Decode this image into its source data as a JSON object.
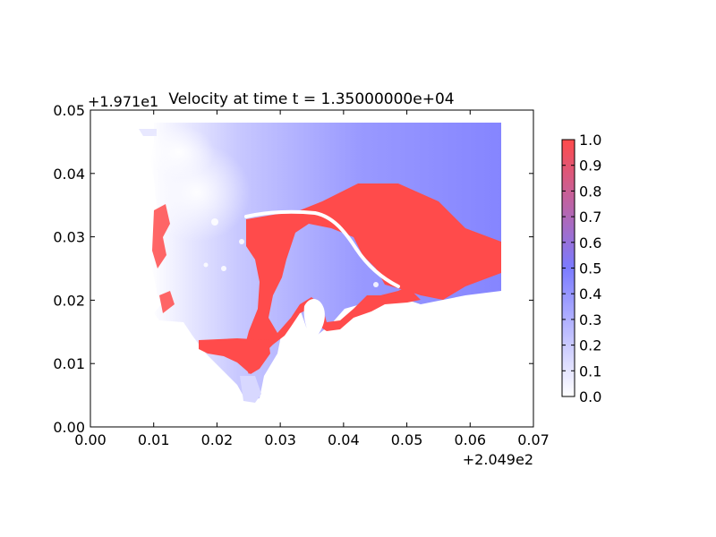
{
  "chart_data": {
    "type": "heatmap",
    "title": "Velocity at time t = 1.35000000e+04",
    "x_offset_label": "+2.049e2",
    "y_offset_label": "+1.971e1",
    "xlim": [
      0.0,
      0.07
    ],
    "ylim": [
      0.0,
      0.05
    ],
    "x_ticks": [
      "0.00",
      "0.01",
      "0.02",
      "0.03",
      "0.04",
      "0.05",
      "0.06",
      "0.07"
    ],
    "y_ticks": [
      "0.00",
      "0.01",
      "0.02",
      "0.03",
      "0.04",
      "0.05"
    ],
    "colorbar": {
      "range": [
        0.0,
        1.0
      ],
      "ticks": [
        "0.0",
        "0.1",
        "0.2",
        "0.3",
        "0.4",
        "0.5",
        "0.6",
        "0.7",
        "0.8",
        "0.9",
        "1.0"
      ],
      "colormap": "white-blue-red",
      "colors": {
        "low": "#ffffff",
        "mid": "#7b7bff",
        "high": "#ff4b4b"
      }
    },
    "grid": false,
    "colors": {
      "white": "#ffffff",
      "blue": "#7b7bff",
      "red": "#ff4b4b",
      "island": "#ffffff"
    }
  }
}
